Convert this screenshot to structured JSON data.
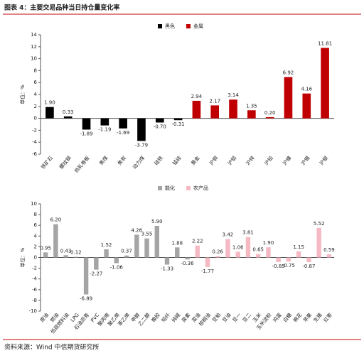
{
  "title": "图表 4：主要交易品种当日持仓量变化率",
  "source": "资料来源：Wind 中信期货研究所",
  "chart_data": [
    {
      "type": "bar",
      "y_label": "单位：%",
      "categories": [
        "铁矿石",
        "螺纹钢",
        "热轧卷板",
        "焦煤",
        "焦炭",
        "动力煤",
        "硅铁",
        "锰硅",
        "黄金",
        "沪铜",
        "沪铝",
        "沪锌",
        "沪铅",
        "沪镍",
        "沪锡",
        "沪银"
      ],
      "series": [
        {
          "name": "黑色",
          "color": "#000000",
          "values": [
            1.9,
            0.33,
            -1.89,
            -1.19,
            -1.69,
            -3.79,
            -0.7,
            -0.31,
            null,
            null,
            null,
            null,
            null,
            null,
            null,
            null
          ],
          "value_labels": [
            "1.90",
            "0.33",
            "-1.89",
            "-1.19",
            "-1.69",
            "-3.79",
            "-0.70",
            "-0.31",
            null,
            null,
            null,
            null,
            null,
            null,
            null,
            null
          ]
        },
        {
          "name": "金属",
          "color": "#c00000",
          "values": [
            null,
            null,
            null,
            null,
            null,
            null,
            null,
            null,
            2.94,
            2.17,
            3.14,
            1.35,
            0.2,
            6.92,
            4.16,
            11.81
          ],
          "value_labels": [
            null,
            null,
            null,
            null,
            null,
            null,
            null,
            null,
            "2.94",
            "2.17",
            "3.14",
            "1.35",
            "0.20",
            "6.92",
            "4.16",
            "11.81"
          ]
        }
      ],
      "ylim": [
        -6,
        14
      ],
      "yticks": [
        -6,
        -4,
        -2,
        0,
        2,
        4,
        6,
        8,
        10,
        12,
        14
      ]
    },
    {
      "type": "bar",
      "y_label": "单位：%",
      "categories": [
        "原油",
        "燃油",
        "低硫燃料油",
        "LPG",
        "石油沥青",
        "PVC",
        "聚丙烯",
        "聚乙烯",
        "苯乙烯",
        "甲醇",
        "乙二醇",
        "橡胶",
        "短纤",
        "纯碱",
        "尿素",
        "菜油",
        "棕榈油",
        "豆粕",
        "豆油",
        "豆一",
        "豆二",
        "玉米",
        "玉米淀粉",
        "鸡蛋",
        "白糖",
        "棉花",
        "苹果",
        "生猪",
        "红枣"
      ],
      "series": [
        {
          "name": "能化",
          "color": "#a5a5a5",
          "values": [
            0.95,
            6.2,
            0.43,
            0.12,
            -6.89,
            -2.27,
            1.52,
            -1.06,
            0.37,
            4.26,
            3.55,
            5.9,
            -1.33,
            1.88,
            -0.36,
            null,
            null,
            null,
            null,
            null,
            null,
            null,
            null,
            null,
            null,
            null,
            null,
            null,
            null
          ],
          "value_labels": [
            "0.95",
            "6.20",
            "0.43",
            "0.12",
            "-6.89",
            "-2.27",
            "1.52",
            "-1.06",
            "0.37",
            "4.26",
            "3.55",
            "5.90",
            "-1.33",
            "1.88",
            "-0.36",
            null,
            null,
            null,
            null,
            null,
            null,
            null,
            null,
            null,
            null,
            null,
            null,
            null,
            null
          ]
        },
        {
          "name": "农产品",
          "color": "#f4b9c3",
          "values": [
            null,
            null,
            null,
            null,
            null,
            null,
            null,
            null,
            null,
            null,
            null,
            null,
            null,
            null,
            null,
            2.22,
            -1.77,
            0.26,
            3.42,
            1.06,
            3.81,
            0.65,
            1.9,
            -0.85,
            -0.75,
            1.15,
            -0.87,
            5.52,
            0.59
          ],
          "value_labels": [
            null,
            null,
            null,
            null,
            null,
            null,
            null,
            null,
            null,
            null,
            null,
            null,
            null,
            null,
            null,
            "2.22",
            "-1.77",
            "0.26",
            "3.42",
            "1.06",
            "3.81",
            "0.65",
            "1.90",
            "-0.85",
            "-0.75",
            "1.15",
            "-0.87",
            "5.52",
            "0.59"
          ]
        }
      ],
      "ylim": [
        -10,
        10
      ],
      "yticks": [
        -10,
        -8,
        -6,
        -4,
        -2,
        0,
        2,
        4,
        6,
        8,
        10
      ]
    }
  ]
}
